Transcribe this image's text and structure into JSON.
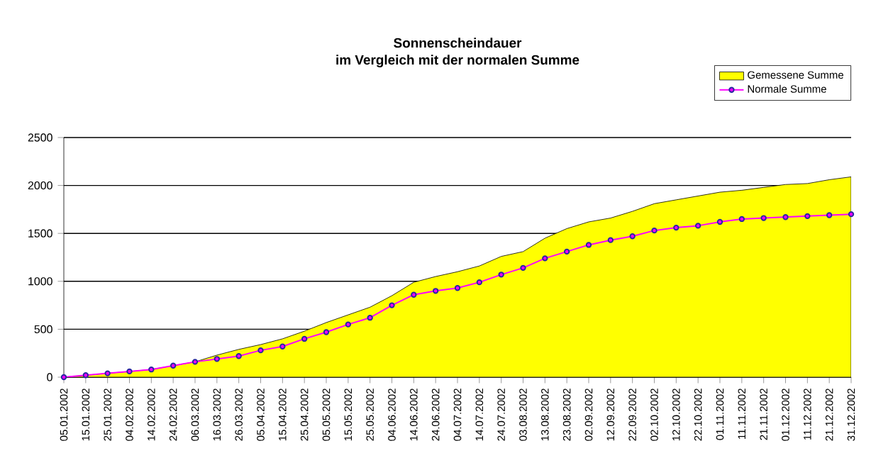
{
  "chart_data": {
    "type": "area",
    "title": "Sonnenscheindauer",
    "subtitle": "im Vergleich mit der normalen Summe",
    "x": [
      "2002-01-05",
      "2002-01-15",
      "2002-01-25",
      "2002-02-04",
      "2002-02-14",
      "2002-02-24",
      "2002-03-06",
      "2002-03-16",
      "2002-03-26",
      "2002-04-05",
      "2002-04-15",
      "2002-04-25",
      "2002-05-05",
      "2002-05-15",
      "2002-05-25",
      "2002-06-04",
      "2002-06-14",
      "2002-06-24",
      "2002-07-04",
      "2002-07-14",
      "2002-07-24",
      "2002-08-03",
      "2002-08-13",
      "2002-08-23",
      "2002-09-02",
      "2002-09-12",
      "2002-09-22",
      "2002-10-02",
      "2002-10-12",
      "2002-10-22",
      "2002-11-01",
      "2002-11-11",
      "2002-11-21",
      "2002-12-01",
      "2002-12-11",
      "2002-12-21",
      "2002-12-31"
    ],
    "series": [
      {
        "name": "Gemessene Summe",
        "color": "#ffff00",
        "values": [
          0,
          20,
          40,
          60,
          80,
          120,
          160,
          230,
          290,
          340,
          400,
          480,
          570,
          650,
          730,
          850,
          990,
          1050,
          1100,
          1160,
          1260,
          1310,
          1450,
          1550,
          1620,
          1660,
          1730,
          1810,
          1850,
          1890,
          1930,
          1950,
          1980,
          2010,
          2020,
          2060,
          2090
        ]
      },
      {
        "name": "Normale Summe",
        "type": "line",
        "color": "#ff00ff",
        "marker": "circle",
        "values": [
          0,
          20,
          40,
          60,
          80,
          120,
          160,
          190,
          220,
          280,
          320,
          400,
          470,
          550,
          620,
          750,
          860,
          900,
          930,
          990,
          1070,
          1140,
          1240,
          1310,
          1380,
          1430,
          1470,
          1530,
          1560,
          1580,
          1620,
          1650,
          1660,
          1670,
          1680,
          1690,
          1700
        ]
      }
    ],
    "xlim": [
      "2002-01-05",
      "2002-12-31"
    ],
    "xticks": [
      {
        "value": "2002-01-05",
        "label": "05.01.2002"
      },
      {
        "value": "2002-01-15",
        "label": "15.01.2002"
      },
      {
        "value": "2002-01-25",
        "label": "25.01.2002"
      },
      {
        "value": "2002-02-04",
        "label": "04.02.2002"
      },
      {
        "value": "2002-02-14",
        "label": "14.02.2002"
      },
      {
        "value": "2002-02-24",
        "label": "24.02.2002"
      },
      {
        "value": "2002-03-06",
        "label": "06.03.2002"
      },
      {
        "value": "2002-03-16",
        "label": "16.03.2002"
      },
      {
        "value": "2002-03-26",
        "label": "26.03.2002"
      },
      {
        "value": "2002-04-05",
        "label": "05.04.2002"
      },
      {
        "value": "2002-04-15",
        "label": "15.04.2002"
      },
      {
        "value": "2002-04-25",
        "label": "25.04.2002"
      },
      {
        "value": "2002-05-05",
        "label": "05.05.2002"
      },
      {
        "value": "2002-05-15",
        "label": "15.05.2002"
      },
      {
        "value": "2002-05-25",
        "label": "25.05.2002"
      },
      {
        "value": "2002-06-04",
        "label": "04.06.2002"
      },
      {
        "value": "2002-06-14",
        "label": "14.06.2002"
      },
      {
        "value": "2002-06-24",
        "label": "24.06.2002"
      },
      {
        "value": "2002-07-04",
        "label": "04.07.2002"
      },
      {
        "value": "2002-07-14",
        "label": "14.07.2002"
      },
      {
        "value": "2002-07-24",
        "label": "24.07.2002"
      },
      {
        "value": "2002-08-03",
        "label": "03.08.2002"
      },
      {
        "value": "2002-08-13",
        "label": "13.08.2002"
      },
      {
        "value": "2002-08-23",
        "label": "23.08.2002"
      },
      {
        "value": "2002-09-02",
        "label": "02.09.2002"
      },
      {
        "value": "2002-09-12",
        "label": "12.09.2002"
      },
      {
        "value": "2002-09-22",
        "label": "22.09.2002"
      },
      {
        "value": "2002-10-02",
        "label": "02.10.2002"
      },
      {
        "value": "2002-10-12",
        "label": "12.10.2002"
      },
      {
        "value": "2002-10-22",
        "label": "22.10.2002"
      },
      {
        "value": "2002-11-01",
        "label": "01.11.2002"
      },
      {
        "value": "2002-11-11",
        "label": "11.11.2002"
      },
      {
        "value": "2002-11-21",
        "label": "21.11.2002"
      },
      {
        "value": "2002-12-01",
        "label": "01.12.2002"
      },
      {
        "value": "2002-12-11",
        "label": "11.12.2002"
      },
      {
        "value": "2002-12-21",
        "label": "21.12.2002"
      },
      {
        "value": "2002-12-31",
        "label": "31.12.2002"
      }
    ],
    "ylim": [
      0,
      2500
    ],
    "yticks": [
      0,
      500,
      1000,
      1500,
      2000,
      2500
    ],
    "grid": "y",
    "legend": "top right"
  }
}
